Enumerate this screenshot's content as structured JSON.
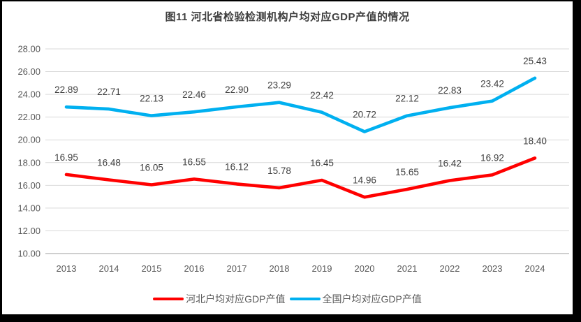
{
  "frame": {
    "border_color": "#000000",
    "background_color": "#ffffff"
  },
  "chart_data": {
    "type": "line",
    "title": "图11 河北省检验检测机构户均对应GDP产值的情况",
    "categories": [
      "2013",
      "2014",
      "2015",
      "2016",
      "2017",
      "2018",
      "2019",
      "2020",
      "2021",
      "2022",
      "2023",
      "2024"
    ],
    "series": [
      {
        "name": "河北户均对应GDP产值",
        "color": "#FF0000",
        "values": [
          16.95,
          16.48,
          16.05,
          16.55,
          16.12,
          15.78,
          16.45,
          14.96,
          15.65,
          16.42,
          16.92,
          18.4
        ]
      },
      {
        "name": "全国户均对应GDP产值",
        "color": "#00B0F0",
        "values": [
          22.89,
          22.71,
          22.13,
          22.46,
          22.9,
          23.29,
          22.42,
          20.72,
          22.12,
          22.83,
          23.42,
          25.43
        ]
      }
    ],
    "xlabel": "",
    "ylabel": "",
    "ylim": [
      10,
      28
    ],
    "ytick_step": 2,
    "y_ticks": [
      "28.00",
      "26.00",
      "24.00",
      "22.00",
      "20.00",
      "18.00",
      "16.00",
      "14.00",
      "12.00",
      "10.00"
    ],
    "grid": true,
    "data_labels": true,
    "legend_position": "bottom",
    "styles": {
      "grid_color": "#D9D9D9",
      "axis_line_color": "#BFBFBF",
      "tick_label_color": "#595959",
      "data_label_color": "#404040",
      "title_color": "#3f3f3f"
    }
  }
}
